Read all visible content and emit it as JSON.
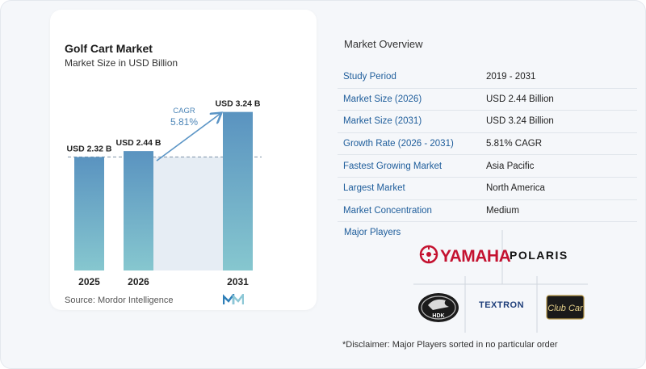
{
  "chart_card": {
    "title": "Golf Cart Market",
    "subtitle": "Market Size in USD Billion",
    "source": "Source:  Mordor Intelligence"
  },
  "chart_data": {
    "type": "bar",
    "title": "Golf Cart Market",
    "subtitle": "Market Size in USD Billion",
    "categories": [
      "2025",
      "2026",
      "2031"
    ],
    "values": [
      2.32,
      2.44,
      3.24
    ],
    "value_labels": [
      "USD 2.32 B",
      "USD 2.44 B",
      "USD 3.24 B"
    ],
    "cagr_label": "CAGR",
    "cagr_value": "5.81%",
    "ylim": [
      0,
      3.3
    ],
    "grid": false,
    "colors": {
      "bar_top": "#5a93c0",
      "bar_bottom": "#86c7cf",
      "band": "#e6edf4",
      "arrow": "#5b95c6"
    }
  },
  "overview": {
    "title": "Market Overview",
    "rows": [
      {
        "label": "Study Period",
        "value": "2019 - 2031"
      },
      {
        "label": "Market Size (2026)",
        "value": "USD 2.44 Billion"
      },
      {
        "label": "Market Size (2031)",
        "value": "USD 3.24 Billion"
      },
      {
        "label": "Growth Rate (2026 - 2031)",
        "value": "5.81% CAGR"
      },
      {
        "label": "Fastest Growing Market",
        "value": "Asia Pacific"
      },
      {
        "label": "Largest Market",
        "value": "North America"
      },
      {
        "label": "Market Concentration",
        "value": "Medium"
      }
    ],
    "players_title": "Major Players",
    "players": [
      "YAMAHA",
      "POLARIS",
      "HDK",
      "TEXTRON",
      "Club Car"
    ],
    "disclaimer": "*Disclaimer: Major Players sorted in no particular order"
  },
  "colors": {
    "label_blue": "#1e5d9b"
  }
}
